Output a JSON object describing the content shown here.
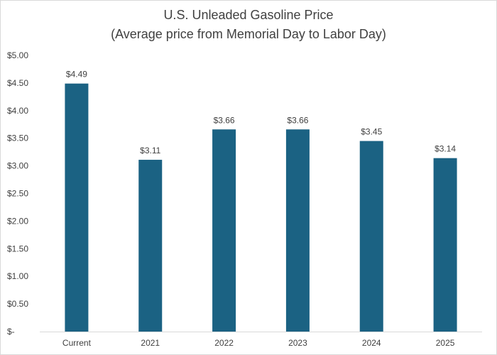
{
  "chart_data": {
    "type": "bar",
    "title": "U.S. Unleaded Gasoline Price",
    "subtitle": "(Average price from Memorial Day to Labor Day)",
    "categories": [
      "Current",
      "2021",
      "2022",
      "2023",
      "2024",
      "2025"
    ],
    "series": [
      {
        "values": [
          4.49,
          3.11,
          3.66,
          3.66,
          3.45,
          3.14
        ],
        "data_labels": [
          "$4.49",
          "$3.11",
          "$3.66",
          "$3.66",
          "$3.45",
          "$3.14"
        ],
        "color": "#1B6283"
      }
    ],
    "y_ticks": [
      {
        "value": 5.0,
        "label": "$5.00"
      },
      {
        "value": 4.5,
        "label": "$4.50"
      },
      {
        "value": 4.0,
        "label": "$4.00"
      },
      {
        "value": 3.5,
        "label": "$3.50"
      },
      {
        "value": 3.0,
        "label": "$3.00"
      },
      {
        "value": 2.5,
        "label": "$2.50"
      },
      {
        "value": 2.0,
        "label": "$2.00"
      },
      {
        "value": 1.5,
        "label": "$1.50"
      },
      {
        "value": 1.0,
        "label": "$1.00"
      },
      {
        "value": 0.5,
        "label": "$0.50"
      },
      {
        "value": 0.0,
        "label": "$-"
      }
    ],
    "ylim": [
      0,
      5
    ],
    "xlabel": "",
    "ylabel": "",
    "grid": false,
    "legend": "none",
    "axis_color": "#d9d9d9"
  }
}
